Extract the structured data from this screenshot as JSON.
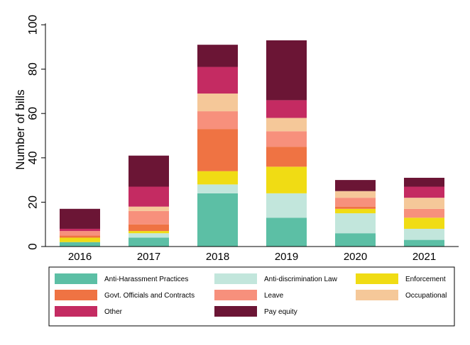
{
  "chart_data": {
    "type": "bar",
    "stacked": true,
    "ylabel": "Number of bills",
    "xlabel": "",
    "ylim": [
      0,
      100
    ],
    "yticks": [
      0,
      20,
      40,
      60,
      80,
      100
    ],
    "grid": false,
    "legend_position": "bottom",
    "categories": [
      "2016",
      "2017",
      "2018",
      "2019",
      "2020",
      "2021"
    ],
    "series": [
      {
        "name": "Anti-Harassment Practices",
        "color": "#5cbfa5",
        "values": [
          2,
          4,
          24,
          13,
          6,
          3
        ]
      },
      {
        "name": "Anti-discrimination Law",
        "color": "#c2e6dc",
        "values": [
          0,
          2,
          4,
          11,
          9,
          5
        ]
      },
      {
        "name": "Enforcement",
        "color": "#f0dc14",
        "values": [
          2,
          1,
          6,
          12,
          2,
          5
        ]
      },
      {
        "name": "Govt. Officials and Contracts",
        "color": "#ef7343",
        "values": [
          1,
          3,
          19,
          9,
          1,
          0
        ]
      },
      {
        "name": "Leave",
        "color": "#f7907c",
        "values": [
          2,
          6,
          8,
          7,
          4,
          4
        ]
      },
      {
        "name": "Occupational",
        "color": "#f5c899",
        "values": [
          0,
          2,
          8,
          6,
          3,
          5
        ]
      },
      {
        "name": "Other",
        "color": "#c42b62",
        "values": [
          1,
          9,
          12,
          8,
          0,
          5
        ]
      },
      {
        "name": "Pay equity",
        "color": "#6b1535",
        "values": [
          9,
          14,
          10,
          27,
          5,
          4
        ]
      }
    ]
  }
}
